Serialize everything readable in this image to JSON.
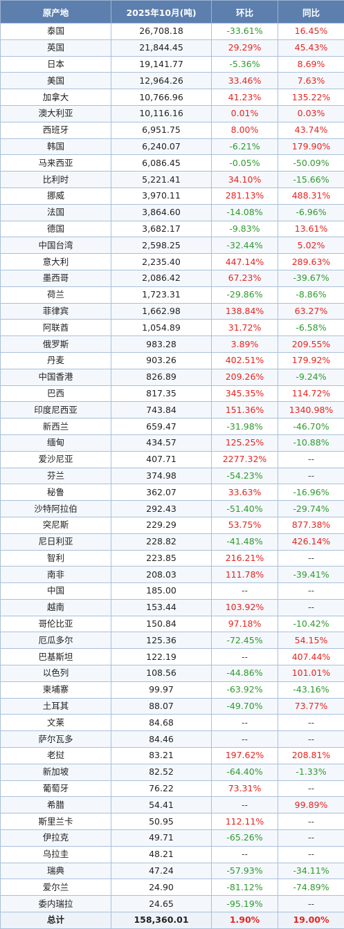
{
  "header": {
    "origin": "原产地",
    "volume": "2025年10月(吨)",
    "mom": "环比",
    "yoy": "同比"
  },
  "colors": {
    "header_bg": "#5c7fae",
    "increase": "#e8231f",
    "decrease": "#2e9a2e",
    "border": "#a9bfd9"
  },
  "rows": [
    {
      "origin": "泰国",
      "volume": "26,708.18",
      "mom": "-33.61%",
      "yoy": "16.45%"
    },
    {
      "origin": "英国",
      "volume": "21,844.45",
      "mom": "29.29%",
      "yoy": "45.43%"
    },
    {
      "origin": "日本",
      "volume": "19,141.77",
      "mom": "-5.36%",
      "yoy": "8.69%"
    },
    {
      "origin": "美国",
      "volume": "12,964.26",
      "mom": "33.46%",
      "yoy": "7.63%"
    },
    {
      "origin": "加拿大",
      "volume": "10,766.96",
      "mom": "41.23%",
      "yoy": "135.22%"
    },
    {
      "origin": "澳大利亚",
      "volume": "10,116.16",
      "mom": "0.01%",
      "yoy": "0.03%"
    },
    {
      "origin": "西班牙",
      "volume": "6,951.75",
      "mom": "8.00%",
      "yoy": "43.74%"
    },
    {
      "origin": "韩国",
      "volume": "6,240.07",
      "mom": "-6.21%",
      "yoy": "179.90%"
    },
    {
      "origin": "马来西亚",
      "volume": "6,086.45",
      "mom": "-0.05%",
      "yoy": "-50.09%"
    },
    {
      "origin": "比利时",
      "volume": "5,221.41",
      "mom": "34.10%",
      "yoy": "-15.66%"
    },
    {
      "origin": "挪威",
      "volume": "3,970.11",
      "mom": "281.13%",
      "yoy": "488.31%"
    },
    {
      "origin": "法国",
      "volume": "3,864.60",
      "mom": "-14.08%",
      "yoy": "-6.96%"
    },
    {
      "origin": "德国",
      "volume": "3,682.17",
      "mom": "-9.83%",
      "yoy": "13.61%"
    },
    {
      "origin": "中国台湾",
      "volume": "2,598.25",
      "mom": "-32.44%",
      "yoy": "5.02%"
    },
    {
      "origin": "意大利",
      "volume": "2,235.40",
      "mom": "447.14%",
      "yoy": "289.63%"
    },
    {
      "origin": "墨西哥",
      "volume": "2,086.42",
      "mom": "67.23%",
      "yoy": "-39.67%"
    },
    {
      "origin": "荷兰",
      "volume": "1,723.31",
      "mom": "-29.86%",
      "yoy": "-8.86%"
    },
    {
      "origin": "菲律宾",
      "volume": "1,662.98",
      "mom": "138.84%",
      "yoy": "63.27%"
    },
    {
      "origin": "阿联酋",
      "volume": "1,054.89",
      "mom": "31.72%",
      "yoy": "-6.58%"
    },
    {
      "origin": "俄罗斯",
      "volume": "983.28",
      "mom": "3.89%",
      "yoy": "209.55%"
    },
    {
      "origin": "丹麦",
      "volume": "903.26",
      "mom": "402.51%",
      "yoy": "179.92%"
    },
    {
      "origin": "中国香港",
      "volume": "826.89",
      "mom": "209.26%",
      "yoy": "-9.24%"
    },
    {
      "origin": "巴西",
      "volume": "817.35",
      "mom": "345.35%",
      "yoy": "114.72%"
    },
    {
      "origin": "印度尼西亚",
      "volume": "743.84",
      "mom": "151.36%",
      "yoy": "1340.98%"
    },
    {
      "origin": "新西兰",
      "volume": "659.47",
      "mom": "-31.98%",
      "yoy": "-46.70%"
    },
    {
      "origin": "缅甸",
      "volume": "434.57",
      "mom": "125.25%",
      "yoy": "-10.88%"
    },
    {
      "origin": "爱沙尼亚",
      "volume": "407.71",
      "mom": "2277.32%",
      "yoy": "--"
    },
    {
      "origin": "芬兰",
      "volume": "374.98",
      "mom": "-54.23%",
      "yoy": "--"
    },
    {
      "origin": "秘鲁",
      "volume": "362.07",
      "mom": "33.63%",
      "yoy": "-16.96%"
    },
    {
      "origin": "沙特阿拉伯",
      "volume": "292.43",
      "mom": "-51.40%",
      "yoy": "-29.74%"
    },
    {
      "origin": "突尼斯",
      "volume": "229.29",
      "mom": "53.75%",
      "yoy": "877.38%"
    },
    {
      "origin": "尼日利亚",
      "volume": "228.82",
      "mom": "-41.48%",
      "yoy": "426.14%"
    },
    {
      "origin": "智利",
      "volume": "223.85",
      "mom": "216.21%",
      "yoy": "--"
    },
    {
      "origin": "南非",
      "volume": "208.03",
      "mom": "111.78%",
      "yoy": "-39.41%"
    },
    {
      "origin": "中国",
      "volume": "185.00",
      "mom": "--",
      "yoy": "--"
    },
    {
      "origin": "越南",
      "volume": "153.44",
      "mom": "103.92%",
      "yoy": "--"
    },
    {
      "origin": "哥伦比亚",
      "volume": "150.84",
      "mom": "97.18%",
      "yoy": "-10.42%"
    },
    {
      "origin": "厄瓜多尔",
      "volume": "125.36",
      "mom": "-72.45%",
      "yoy": "54.15%"
    },
    {
      "origin": "巴基斯坦",
      "volume": "122.19",
      "mom": "--",
      "yoy": "407.44%"
    },
    {
      "origin": "以色列",
      "volume": "108.56",
      "mom": "-44.86%",
      "yoy": "101.01%"
    },
    {
      "origin": "柬埔寨",
      "volume": "99.97",
      "mom": "-63.92%",
      "yoy": "-43.16%"
    },
    {
      "origin": "土耳其",
      "volume": "88.07",
      "mom": "-49.70%",
      "yoy": "73.77%"
    },
    {
      "origin": "文莱",
      "volume": "84.68",
      "mom": "--",
      "yoy": "--"
    },
    {
      "origin": "萨尔瓦多",
      "volume": "84.46",
      "mom": "--",
      "yoy": "--"
    },
    {
      "origin": "老挝",
      "volume": "83.21",
      "mom": "197.62%",
      "yoy": "208.81%"
    },
    {
      "origin": "新加坡",
      "volume": "82.52",
      "mom": "-64.40%",
      "yoy": "-1.33%"
    },
    {
      "origin": "葡萄牙",
      "volume": "76.22",
      "mom": "73.31%",
      "yoy": "--"
    },
    {
      "origin": "希腊",
      "volume": "54.41",
      "mom": "--",
      "yoy": "99.89%"
    },
    {
      "origin": "斯里兰卡",
      "volume": "50.95",
      "mom": "112.11%",
      "yoy": "--"
    },
    {
      "origin": "伊拉克",
      "volume": "49.71",
      "mom": "-65.26%",
      "yoy": "--"
    },
    {
      "origin": "乌拉圭",
      "volume": "48.21",
      "mom": "--",
      "yoy": "--"
    },
    {
      "origin": "瑞典",
      "volume": "47.24",
      "mom": "-57.93%",
      "yoy": "-34.11%"
    },
    {
      "origin": "爱尔兰",
      "volume": "24.90",
      "mom": "-81.12%",
      "yoy": "-74.89%"
    },
    {
      "origin": "委内瑞拉",
      "volume": "24.65",
      "mom": "-95.19%",
      "yoy": "--"
    }
  ],
  "total": {
    "origin": "总计",
    "volume": "158,360.01",
    "mom": "1.90%",
    "yoy": "19.00%"
  }
}
